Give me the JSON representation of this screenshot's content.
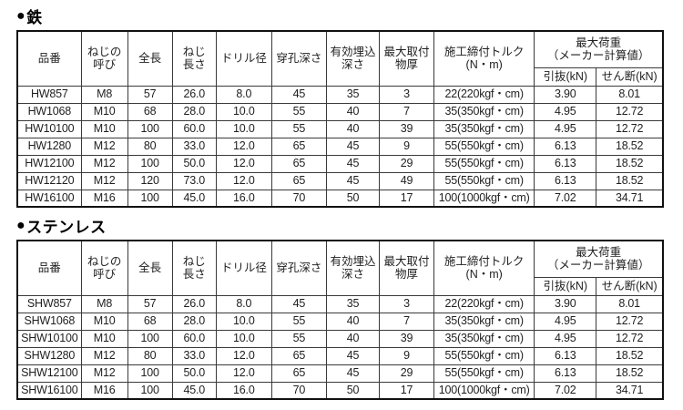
{
  "colors": {
    "background": "#ffffff",
    "ink": "#1a1a1a",
    "border": "#111111"
  },
  "header": {
    "part_number": "品番",
    "thread_size": "ねじの\n呼び",
    "overall_length": "全長",
    "thread_length": "ねじ\n長さ",
    "drill_diameter": "ドリル径",
    "drilling_depth": "穿孔深さ",
    "effective_embed_depth": "有効埋込\n深さ",
    "max_fixture_thickness": "最大取付\n物厚",
    "tightening_torque": "施工締付トルク\n(N・m)",
    "max_load_group": "最大荷重\n（メーカー計算値）",
    "pullout": "引抜(kN)",
    "shear": "せん断(kN)"
  },
  "sections": [
    {
      "bullet": "●",
      "title": "鉄",
      "rows": [
        [
          "HW857",
          "M8",
          "57",
          "26.0",
          "8.0",
          "45",
          "35",
          "3",
          "22(220kgf・cm)",
          "3.90",
          "8.01"
        ],
        [
          "HW1068",
          "M10",
          "68",
          "28.0",
          "10.0",
          "55",
          "40",
          "7",
          "35(350kgf・cm)",
          "4.95",
          "12.72"
        ],
        [
          "HW10100",
          "M10",
          "100",
          "60.0",
          "10.0",
          "55",
          "40",
          "39",
          "35(350kgf・cm)",
          "4.95",
          "12.72"
        ],
        [
          "HW1280",
          "M12",
          "80",
          "33.0",
          "12.0",
          "65",
          "45",
          "9",
          "55(550kgf・cm)",
          "6.13",
          "18.52"
        ],
        [
          "HW12100",
          "M12",
          "100",
          "50.0",
          "12.0",
          "65",
          "45",
          "29",
          "55(550kgf・cm)",
          "6.13",
          "18.52"
        ],
        [
          "HW12120",
          "M12",
          "120",
          "73.0",
          "12.0",
          "65",
          "45",
          "49",
          "55(550kgf・cm)",
          "6.13",
          "18.52"
        ],
        [
          "HW16100",
          "M16",
          "100",
          "45.0",
          "16.0",
          "70",
          "50",
          "17",
          "100(1000kgf・cm)",
          "7.02",
          "34.71"
        ]
      ]
    },
    {
      "bullet": "●",
      "title": "ステンレス",
      "rows": [
        [
          "SHW857",
          "M8",
          "57",
          "26.0",
          "8.0",
          "45",
          "35",
          "3",
          "22(220kgf・cm)",
          "3.90",
          "8.01"
        ],
        [
          "SHW1068",
          "M10",
          "68",
          "28.0",
          "10.0",
          "55",
          "40",
          "7",
          "35(350kgf・cm)",
          "4.95",
          "12.72"
        ],
        [
          "SHW10100",
          "M10",
          "100",
          "60.0",
          "10.0",
          "55",
          "40",
          "39",
          "35(350kgf・cm)",
          "4.95",
          "12.72"
        ],
        [
          "SHW1280",
          "M12",
          "80",
          "33.0",
          "12.0",
          "65",
          "45",
          "9",
          "55(550kgf・cm)",
          "6.13",
          "18.52"
        ],
        [
          "SHW12100",
          "M12",
          "100",
          "50.0",
          "12.0",
          "65",
          "45",
          "29",
          "55(550kgf・cm)",
          "6.13",
          "18.52"
        ],
        [
          "SHW16100",
          "M16",
          "100",
          "45.0",
          "16.0",
          "70",
          "50",
          "17",
          "100(1000kgf・cm)",
          "7.02",
          "34.71"
        ]
      ]
    }
  ]
}
